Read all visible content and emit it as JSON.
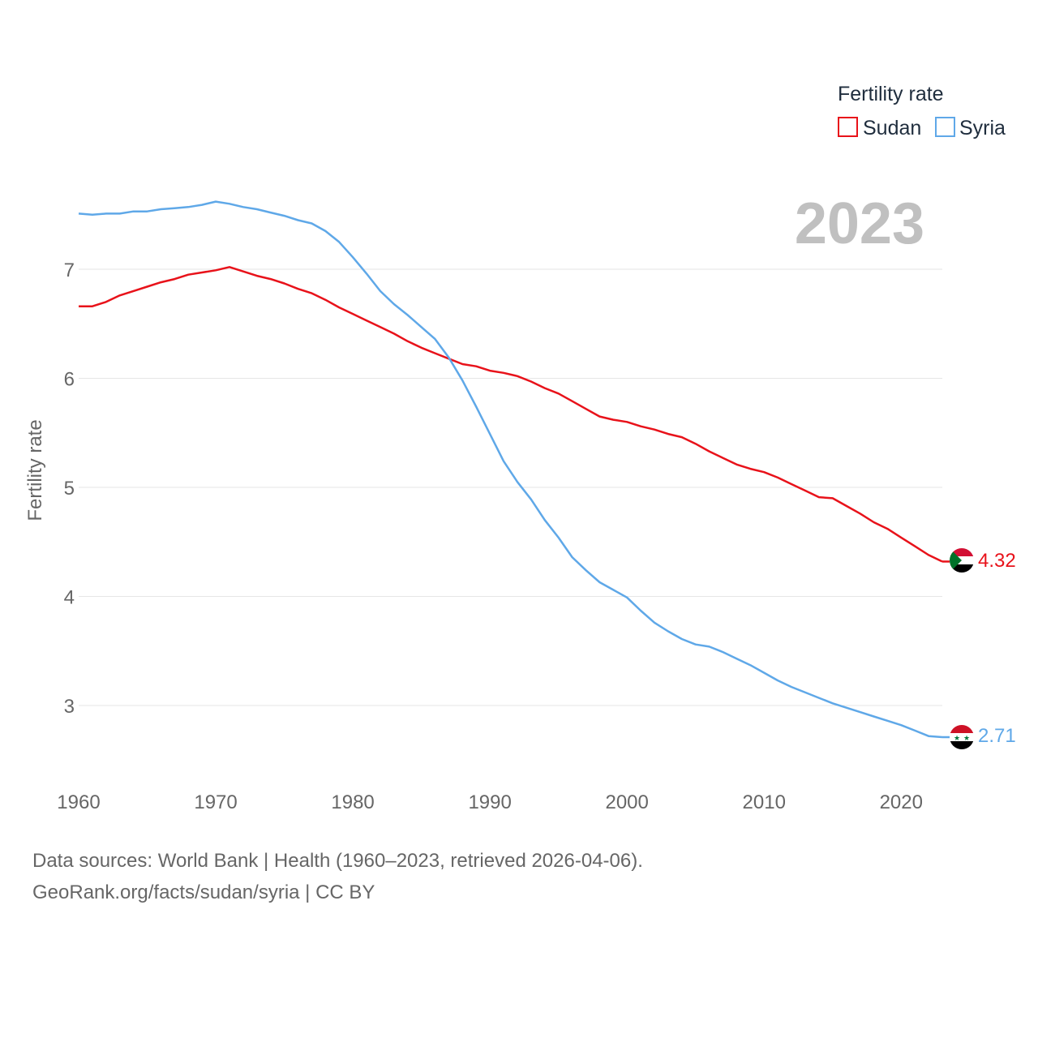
{
  "chart_data": {
    "type": "line",
    "year_label": "2023",
    "legend_title": "Fertility rate",
    "ylabel": "Fertility rate",
    "xlabel": "",
    "xlim": [
      1960,
      2023
    ],
    "ylim": [
      2.5,
      8.0
    ],
    "x_ticks": [
      "1960",
      "1970",
      "1980",
      "1990",
      "2000",
      "2010",
      "2020"
    ],
    "y_ticks": [
      "3",
      "4",
      "5",
      "6",
      "7"
    ],
    "x": [
      1960,
      1961,
      1962,
      1963,
      1964,
      1965,
      1966,
      1967,
      1968,
      1969,
      1970,
      1971,
      1972,
      1973,
      1974,
      1975,
      1976,
      1977,
      1978,
      1979,
      1980,
      1981,
      1982,
      1983,
      1984,
      1985,
      1986,
      1987,
      1988,
      1989,
      1990,
      1991,
      1992,
      1993,
      1994,
      1995,
      1996,
      1997,
      1998,
      1999,
      2000,
      2001,
      2002,
      2003,
      2004,
      2005,
      2006,
      2007,
      2008,
      2009,
      2010,
      2011,
      2012,
      2013,
      2014,
      2015,
      2016,
      2017,
      2018,
      2019,
      2020,
      2021,
      2022,
      2023
    ],
    "series": [
      {
        "name": "Sudan",
        "color": "#e8121a",
        "end_label": "4.32",
        "flag": "sudan-flag",
        "values": [
          6.66,
          6.66,
          6.7,
          6.76,
          6.8,
          6.84,
          6.88,
          6.91,
          6.95,
          6.97,
          6.99,
          7.02,
          6.98,
          6.94,
          6.91,
          6.87,
          6.82,
          6.78,
          6.72,
          6.65,
          6.59,
          6.53,
          6.47,
          6.41,
          6.34,
          6.28,
          6.23,
          6.18,
          6.13,
          6.11,
          6.07,
          6.05,
          6.02,
          5.97,
          5.91,
          5.86,
          5.79,
          5.72,
          5.65,
          5.62,
          5.6,
          5.56,
          5.53,
          5.49,
          5.46,
          5.4,
          5.33,
          5.27,
          5.21,
          5.17,
          5.14,
          5.09,
          5.03,
          4.97,
          4.91,
          4.9,
          4.83,
          4.76,
          4.68,
          4.62,
          4.54,
          4.46,
          4.38,
          4.32
        ]
      },
      {
        "name": "Syria",
        "color": "#5fa8e8",
        "end_label": "2.71",
        "flag": "syria-flag",
        "values": [
          7.51,
          7.5,
          7.51,
          7.51,
          7.53,
          7.53,
          7.55,
          7.56,
          7.57,
          7.59,
          7.62,
          7.6,
          7.57,
          7.55,
          7.52,
          7.49,
          7.45,
          7.42,
          7.35,
          7.25,
          7.11,
          6.96,
          6.8,
          6.68,
          6.58,
          6.47,
          6.36,
          6.19,
          5.98,
          5.74,
          5.49,
          5.24,
          5.05,
          4.89,
          4.7,
          4.54,
          4.36,
          4.24,
          4.13,
          4.06,
          3.99,
          3.87,
          3.76,
          3.68,
          3.61,
          3.56,
          3.54,
          3.49,
          3.43,
          3.37,
          3.3,
          3.23,
          3.17,
          3.12,
          3.07,
          3.02,
          2.98,
          2.94,
          2.9,
          2.86,
          2.82,
          2.77,
          2.72,
          2.71
        ]
      }
    ]
  },
  "source": {
    "line1": "Data sources: World Bank | Health (1960–2023, retrieved 2026-04-06).",
    "line2": "GeoRank.org/facts/sudan/syria | CC BY"
  }
}
